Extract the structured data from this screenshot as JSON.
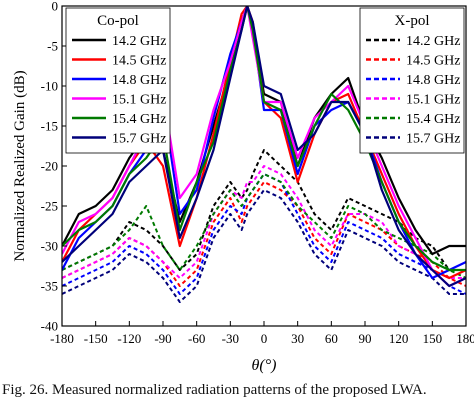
{
  "caption": "Fig. 26.   Measured normalized radiation patterns of the proposed LWA.",
  "chart_data": {
    "type": "line",
    "xlabel": "θ(°)",
    "ylabel": "Normalized Realized Gain (dB)",
    "xlim": [
      -180,
      180
    ],
    "ylim": [
      -40,
      0
    ],
    "xticks": [
      -180,
      -150,
      -120,
      -90,
      -60,
      -30,
      0,
      30,
      60,
      90,
      120,
      150,
      180
    ],
    "yticks": [
      0,
      -5,
      -10,
      -15,
      -20,
      -25,
      -30,
      -35,
      -40
    ],
    "grid": false,
    "legends": [
      {
        "title": "Co-pol",
        "placement": "top-left",
        "line_style": "solid"
      },
      {
        "title": "X-pol",
        "placement": "top-right",
        "line_style": "dashed"
      }
    ],
    "x": [
      -180,
      -165,
      -150,
      -135,
      -120,
      -105,
      -90,
      -75,
      -60,
      -45,
      -30,
      -20,
      -15,
      -10,
      0,
      15,
      30,
      45,
      60,
      75,
      90,
      105,
      120,
      135,
      150,
      165,
      180
    ],
    "series": [
      {
        "name": "14.2 GHz",
        "group": "Co-pol",
        "color": "#000000",
        "values": [
          -30,
          -26,
          -25,
          -23,
          -19,
          -16,
          -18,
          -27,
          -22,
          -15,
          -8,
          -2,
          0,
          -3,
          -11,
          -12,
          -20,
          -14,
          -11,
          -9,
          -15,
          -19,
          -24,
          -28,
          -31,
          -30,
          -30
        ]
      },
      {
        "name": "14.5 GHz",
        "group": "Co-pol",
        "color": "#ff0000",
        "values": [
          -32,
          -28,
          -26,
          -24,
          -20,
          -17,
          -20,
          -30,
          -24,
          -16,
          -7,
          -1,
          0,
          -2,
          -12,
          -14,
          -22,
          -16,
          -12,
          -11,
          -16,
          -21,
          -26,
          -30,
          -33,
          -34,
          -33
        ]
      },
      {
        "name": "14.8 GHz",
        "group": "Co-pol",
        "color": "#0000ff",
        "values": [
          -33,
          -29,
          -27,
          -25,
          -21,
          -18,
          -12,
          -26,
          -23,
          -14,
          -6,
          -2,
          0,
          -3,
          -13,
          -13,
          -21,
          -15,
          -13,
          -12,
          -16,
          -22,
          -27,
          -31,
          -34,
          -33,
          -32
        ]
      },
      {
        "name": "15.1 GHz",
        "group": "Co-pol",
        "color": "#ff00ff",
        "values": [
          -31,
          -27,
          -26,
          -24,
          -20,
          -16,
          -11,
          -24,
          -21,
          -13,
          -7,
          -2,
          0,
          -4,
          -12,
          -12,
          -19,
          -14,
          -12,
          -10,
          -15,
          -20,
          -25,
          -29,
          -33,
          -35,
          -34
        ]
      },
      {
        "name": "15.4 GHz",
        "group": "Co-pol",
        "color": "#007a00",
        "values": [
          -30,
          -28,
          -27,
          -25,
          -21,
          -19,
          -16,
          -28,
          -22,
          -17,
          -8,
          -3,
          0,
          -3,
          -12,
          -13,
          -20,
          -15,
          -11,
          -13,
          -17,
          -22,
          -27,
          -30,
          -32,
          -33,
          -33
        ]
      },
      {
        "name": "15.7 GHz",
        "group": "Co-pol",
        "color": "#00007a",
        "values": [
          -32,
          -30,
          -28,
          -26,
          -22,
          -20,
          -18,
          -29,
          -24,
          -18,
          -9,
          -3,
          0,
          -2,
          -10,
          -11,
          -18,
          -16,
          -12,
          -12,
          -16,
          -23,
          -28,
          -31,
          -33,
          -35,
          -34
        ]
      },
      {
        "name": "14.2 GHz",
        "group": "X-pol",
        "color": "#000000",
        "values": [
          -33,
          -32,
          -31,
          -30,
          -27,
          -28,
          -30,
          -33,
          -31,
          -25,
          -22,
          -24,
          -23,
          -21,
          -18,
          -20,
          -22,
          -26,
          -28,
          -24,
          -25,
          -26,
          -27,
          -29,
          -30,
          -33,
          -33
        ]
      },
      {
        "name": "14.5 GHz",
        "group": "X-pol",
        "color": "#ff0000",
        "values": [
          -34,
          -33,
          -32,
          -31,
          -29,
          -30,
          -32,
          -35,
          -33,
          -27,
          -24,
          -27,
          -25,
          -24,
          -22,
          -23,
          -25,
          -29,
          -31,
          -26,
          -27,
          -28,
          -30,
          -31,
          -32,
          -34,
          -35
        ]
      },
      {
        "name": "14.8 GHz",
        "group": "X-pol",
        "color": "#0000ff",
        "values": [
          -35,
          -34,
          -33,
          -32,
          -30,
          -31,
          -33,
          -36,
          -34,
          -28,
          -25,
          -26,
          -24,
          -23,
          -21,
          -22,
          -26,
          -30,
          -32,
          -27,
          -28,
          -29,
          -31,
          -32,
          -33,
          -35,
          -36
        ]
      },
      {
        "name": "15.1 GHz",
        "group": "X-pol",
        "color": "#ff00ff",
        "values": [
          -34,
          -33,
          -32,
          -31,
          -29,
          -30,
          -32,
          -34,
          -32,
          -26,
          -23,
          -24,
          -22,
          -22,
          -20,
          -21,
          -24,
          -28,
          -30,
          -26,
          -26,
          -27,
          -30,
          -31,
          -33,
          -34,
          -34
        ]
      },
      {
        "name": "15.4 GHz",
        "group": "X-pol",
        "color": "#007a00",
        "values": [
          -33,
          -32,
          -31,
          -30,
          -28,
          -25,
          -30,
          -33,
          -30,
          -26,
          -23,
          -25,
          -24,
          -23,
          -21,
          -22,
          -25,
          -27,
          -29,
          -25,
          -26,
          -28,
          -29,
          -30,
          -31,
          -33,
          -34
        ]
      },
      {
        "name": "15.7 GHz",
        "group": "X-pol",
        "color": "#00007a",
        "values": [
          -36,
          -35,
          -34,
          -33,
          -31,
          -32,
          -34,
          -37,
          -35,
          -29,
          -26,
          -28,
          -26,
          -25,
          -23,
          -24,
          -27,
          -31,
          -33,
          -28,
          -29,
          -30,
          -32,
          -33,
          -34,
          -36,
          -36
        ]
      }
    ]
  }
}
